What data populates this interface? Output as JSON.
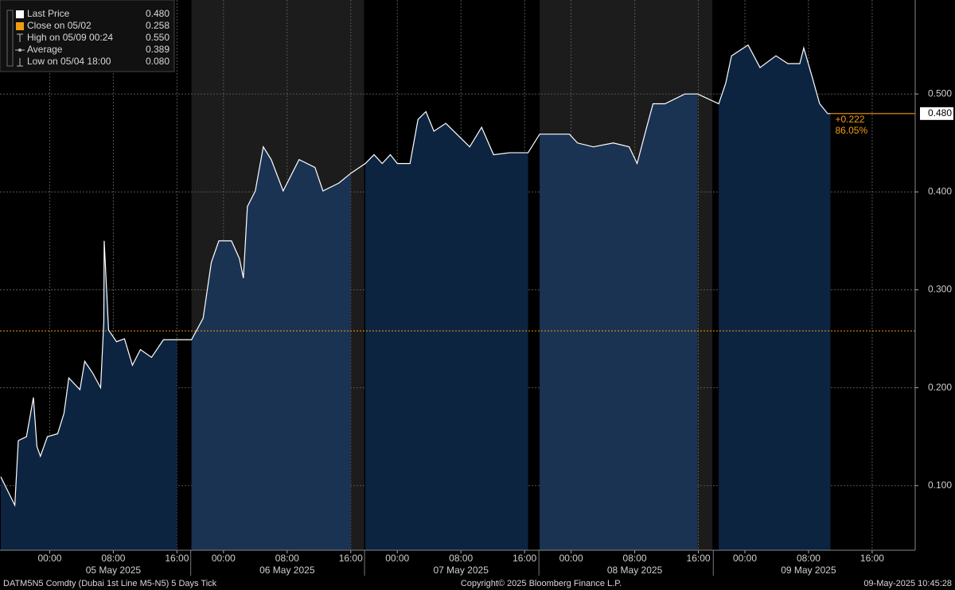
{
  "chart_data": {
    "type": "line",
    "xlim": [
      -8.4,
      119.4
    ],
    "ylim": [
      0.034,
      0.596
    ],
    "yticks": [
      {
        "value": 0.1,
        "label": "0.100"
      },
      {
        "value": 0.2,
        "label": "0.200"
      },
      {
        "value": 0.3,
        "label": "0.300"
      },
      {
        "value": 0.4,
        "label": "0.400"
      },
      {
        "value": 0.5,
        "label": "0.500"
      }
    ],
    "xticks": [
      {
        "value": 0,
        "label": "00:00"
      },
      {
        "value": 8,
        "label": "08:00"
      },
      {
        "value": 16,
        "label": "16:00"
      },
      {
        "value": 24,
        "label": "00:00"
      },
      {
        "value": 32,
        "label": "08:00"
      },
      {
        "value": 40,
        "label": "16:00"
      },
      {
        "value": 48,
        "label": "00:00"
      },
      {
        "value": 56,
        "label": "08:00"
      },
      {
        "value": 64,
        "label": "16:00"
      },
      {
        "value": 72,
        "label": "00:00"
      },
      {
        "value": 80,
        "label": "08:00"
      },
      {
        "value": 88,
        "label": "16:00"
      },
      {
        "value": 96,
        "label": "00:00"
      },
      {
        "value": 104,
        "label": "08:00"
      },
      {
        "value": 112,
        "label": "16:00"
      }
    ],
    "date_labels": [
      {
        "value": 8,
        "label": "05 May 2025"
      },
      {
        "value": 32,
        "label": "06 May 2025"
      },
      {
        "value": 56,
        "label": "07 May 2025"
      },
      {
        "value": 80,
        "label": "08 May 2025"
      },
      {
        "value": 104,
        "label": "09 May 2025"
      }
    ],
    "grid": true,
    "sessions": [
      [
        -8.4,
        18.2
      ],
      [
        18.5,
        42.3
      ],
      [
        42.5,
        66.3
      ],
      [
        66.6,
        90.4
      ],
      [
        90.7,
        119.4
      ]
    ],
    "session_area_colors": [
      "#0d2441",
      "#1b3352"
    ],
    "session_panel_colors": [
      "#000000",
      "#1c1c1c"
    ],
    "series": [
      {
        "name": "Last Price",
        "color": "#ffffff",
        "x": [
          -8.3,
          -6,
          -5.4,
          -4,
          -2.8,
          -2.2,
          -1.6,
          -0.4,
          1.0,
          1.8,
          2.4,
          3.8,
          4.4,
          5.4,
          6.4,
          6.8,
          6.85,
          7.4,
          8.4,
          9.4,
          10.4,
          11.4,
          12.8,
          14.3,
          16.0,
          18.5,
          20.5,
          21.9,
          23.2,
          25.0,
          26.0,
          26.5,
          27.0,
          28.0,
          29.0,
          30.0,
          31.5,
          33.5,
          35.5,
          36.5,
          38.5,
          40.0,
          42.5,
          44.0,
          45.4,
          46.8,
          48,
          49.6,
          50.6,
          51.6,
          52.6,
          54.1,
          55.6,
          57.1,
          58.6,
          60.1,
          62.1,
          64.6,
          66.6,
          71.7,
          72.8,
          74.8,
          77.3,
          79.3,
          80.3,
          81.5,
          82.3,
          83.8,
          86.3,
          87.9,
          91.5,
          92.7,
          93.7,
          96.4,
          97.9,
          99.9,
          101.4,
          102.9,
          103.4,
          104.4,
          105.4,
          106.4,
          106.75
        ],
        "values": [
          0.109,
          0.08,
          0.146,
          0.15,
          0.19,
          0.14,
          0.13,
          0.15,
          0.153,
          0.174,
          0.21,
          0.198,
          0.227,
          0.215,
          0.2,
          0.267,
          0.35,
          0.259,
          0.247,
          0.25,
          0.223,
          0.239,
          0.231,
          0.249,
          0.249,
          0.249,
          0.271,
          0.328,
          0.35,
          0.35,
          0.332,
          0.312,
          0.385,
          0.401,
          0.446,
          0.433,
          0.401,
          0.433,
          0.425,
          0.401,
          0.409,
          0.419,
          0.429,
          0.438,
          0.429,
          0.438,
          0.429,
          0.429,
          0.474,
          0.482,
          0.462,
          0.47,
          0.458,
          0.446,
          0.466,
          0.438,
          0.44,
          0.44,
          0.459,
          0.459,
          0.45,
          0.446,
          0.45,
          0.446,
          0.429,
          0.466,
          0.49,
          0.49,
          0.5,
          0.5,
          0.49,
          0.511,
          0.539,
          0.55,
          0.527,
          0.539,
          0.531,
          0.531,
          0.547,
          0.519,
          0.49,
          0.48,
          0.48
        ]
      }
    ],
    "legend": [
      {
        "name": "Last Price",
        "value": 0.48,
        "label": "0.480",
        "color": "#ffffff"
      },
      {
        "name": "Close on 05/02",
        "value": 0.258,
        "label": "0.258",
        "color": "#f39c12"
      },
      {
        "name": "High on 05/09 00:24",
        "value": 0.55,
        "label": "0.550",
        "color": "#bbbbbb"
      },
      {
        "name": "Average",
        "value": 0.389,
        "label": "0.389",
        "color": "#bbbbbb"
      },
      {
        "name": "Low on 05/04 18:00",
        "value": 0.08,
        "label": "0.080",
        "color": "#bbbbbb"
      }
    ],
    "reference_color": "#f39c12",
    "annotations": [
      {
        "value": 0.222,
        "label": "+0.222"
      },
      {
        "value": 86.05,
        "label": "86.05%"
      }
    ],
    "footer_left": "DATM5N5 Comdty (Dubai 1st Line   M5-N5) 5 Days  Tick",
    "footer_center": "Copyright© 2025 Bloomberg Finance L.P.",
    "footer_right": "09-May-2025 10:45:28"
  }
}
